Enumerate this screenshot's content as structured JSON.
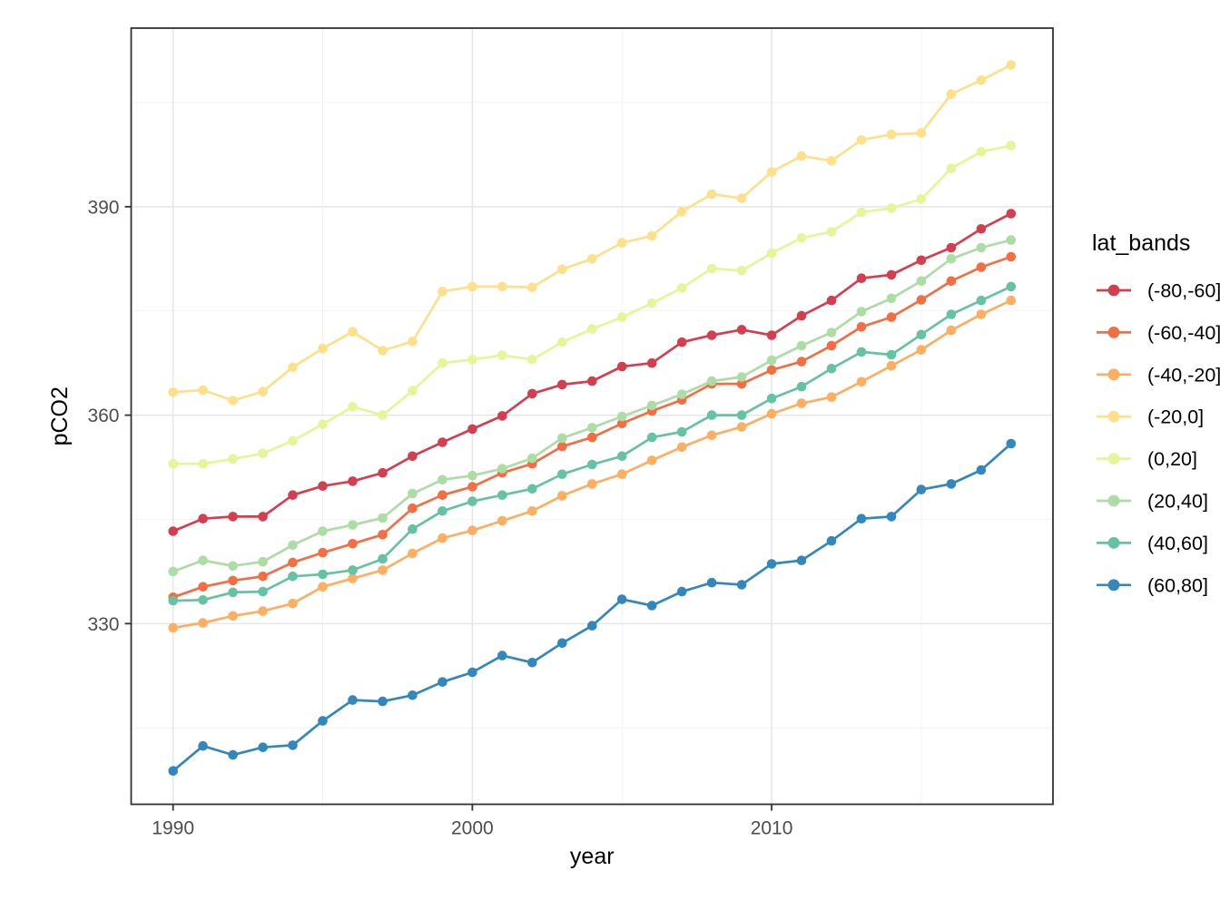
{
  "chart_data": {
    "type": "line",
    "title": "",
    "xlabel": "year",
    "ylabel": "pCO2",
    "legend_title": "lat_bands",
    "legend_position": "right",
    "grid": true,
    "x_domain": [
      1988.6,
      2019.4
    ],
    "y_domain": [
      304.0,
      415.7
    ],
    "x_ticks": [
      1990,
      2000,
      2010
    ],
    "y_ticks": [
      330,
      360,
      390
    ],
    "x_minor_ticks": [
      1995,
      2005,
      2015
    ],
    "y_minor_ticks": [
      315,
      345,
      375,
      405
    ],
    "x": [
      1990,
      1991,
      1992,
      1993,
      1994,
      1995,
      1996,
      1997,
      1998,
      1999,
      2000,
      2001,
      2002,
      2003,
      2004,
      2005,
      2006,
      2007,
      2008,
      2009,
      2010,
      2011,
      2012,
      2013,
      2014,
      2015,
      2016,
      2017,
      2018
    ],
    "series": [
      {
        "name": "(-80,-60]",
        "color": "#d53e4f",
        "values": [
          343.3,
          345.1,
          345.4,
          345.4,
          348.5,
          349.8,
          350.5,
          351.7,
          354.1,
          356.1,
          358.0,
          359.9,
          363.1,
          364.4,
          364.9,
          367.0,
          367.5,
          370.5,
          371.5,
          372.3,
          371.5,
          374.3,
          376.5,
          379.7,
          380.2,
          382.3,
          384.1,
          386.8,
          389.0
        ]
      },
      {
        "name": "(-60,-40]",
        "color": "#f46d43",
        "values": [
          333.8,
          335.3,
          336.2,
          336.8,
          338.8,
          340.2,
          341.5,
          342.8,
          346.6,
          348.5,
          349.7,
          351.7,
          353.0,
          355.5,
          356.8,
          358.8,
          360.6,
          362.2,
          364.5,
          364.5,
          366.5,
          367.7,
          370.0,
          372.7,
          374.1,
          376.6,
          379.3,
          381.3,
          382.8
        ]
      },
      {
        "name": "(-40,-20]",
        "color": "#fdae61",
        "values": [
          329.4,
          330.1,
          331.1,
          331.8,
          332.9,
          335.3,
          336.5,
          337.7,
          340.1,
          342.3,
          343.4,
          344.8,
          346.2,
          348.4,
          350.1,
          351.5,
          353.5,
          355.4,
          357.1,
          358.3,
          360.2,
          361.7,
          362.6,
          364.8,
          367.1,
          369.4,
          372.2,
          374.5,
          376.5
        ]
      },
      {
        "name": "(-20,0]",
        "color": "#fee08b",
        "values": [
          363.3,
          363.6,
          362.1,
          363.4,
          366.9,
          369.6,
          372.0,
          369.3,
          370.6,
          377.8,
          378.5,
          378.5,
          378.4,
          381.0,
          382.5,
          384.8,
          385.8,
          389.3,
          391.8,
          391.2,
          395.0,
          397.3,
          396.6,
          399.6,
          400.4,
          400.6,
          406.2,
          408.2,
          410.4
        ]
      },
      {
        "name": "(0,20]",
        "color": "#e6f598",
        "values": [
          353.0,
          353.0,
          353.7,
          354.5,
          356.3,
          358.7,
          361.2,
          360.0,
          363.5,
          367.5,
          368.0,
          368.6,
          368.0,
          370.5,
          372.4,
          374.1,
          376.1,
          378.3,
          381.1,
          380.8,
          383.3,
          385.5,
          386.4,
          389.2,
          389.8,
          391.1,
          395.5,
          397.9,
          398.8
        ]
      },
      {
        "name": "(20,40]",
        "color": "#abdda4",
        "values": [
          337.5,
          339.1,
          338.3,
          338.9,
          341.3,
          343.3,
          344.2,
          345.2,
          348.7,
          350.7,
          351.3,
          352.3,
          353.8,
          356.7,
          358.2,
          359.8,
          361.4,
          363.0,
          364.9,
          365.5,
          367.9,
          370.0,
          371.9,
          374.9,
          376.8,
          379.3,
          382.5,
          384.1,
          385.2
        ]
      },
      {
        "name": "(40,60]",
        "color": "#66c2a5",
        "values": [
          333.3,
          333.4,
          334.5,
          334.6,
          336.8,
          337.1,
          337.7,
          339.3,
          343.6,
          346.2,
          347.6,
          348.5,
          349.4,
          351.5,
          352.9,
          354.1,
          356.8,
          357.6,
          360.0,
          360.0,
          362.4,
          364.1,
          366.7,
          369.1,
          368.7,
          371.6,
          374.5,
          376.5,
          378.5
        ]
      },
      {
        "name": "(60,80]",
        "color": "#3288bd",
        "values": [
          308.8,
          312.4,
          311.1,
          312.2,
          312.5,
          316.0,
          319.0,
          318.8,
          319.7,
          321.6,
          323.0,
          325.4,
          324.4,
          327.2,
          329.7,
          333.5,
          332.6,
          334.6,
          335.9,
          335.6,
          338.6,
          339.1,
          341.9,
          345.1,
          345.4,
          349.3,
          350.1,
          352.1,
          355.9
        ]
      }
    ],
    "style": {
      "panel_border_color": "#333333",
      "grid_major_color": "#e6e6e6",
      "grid_minor_color": "#f2f2f2",
      "tick_label_color": "#4d4d4d",
      "axis_title_color": "#000000",
      "legend_text_color": "#000000",
      "background_color": "#ffffff"
    }
  }
}
